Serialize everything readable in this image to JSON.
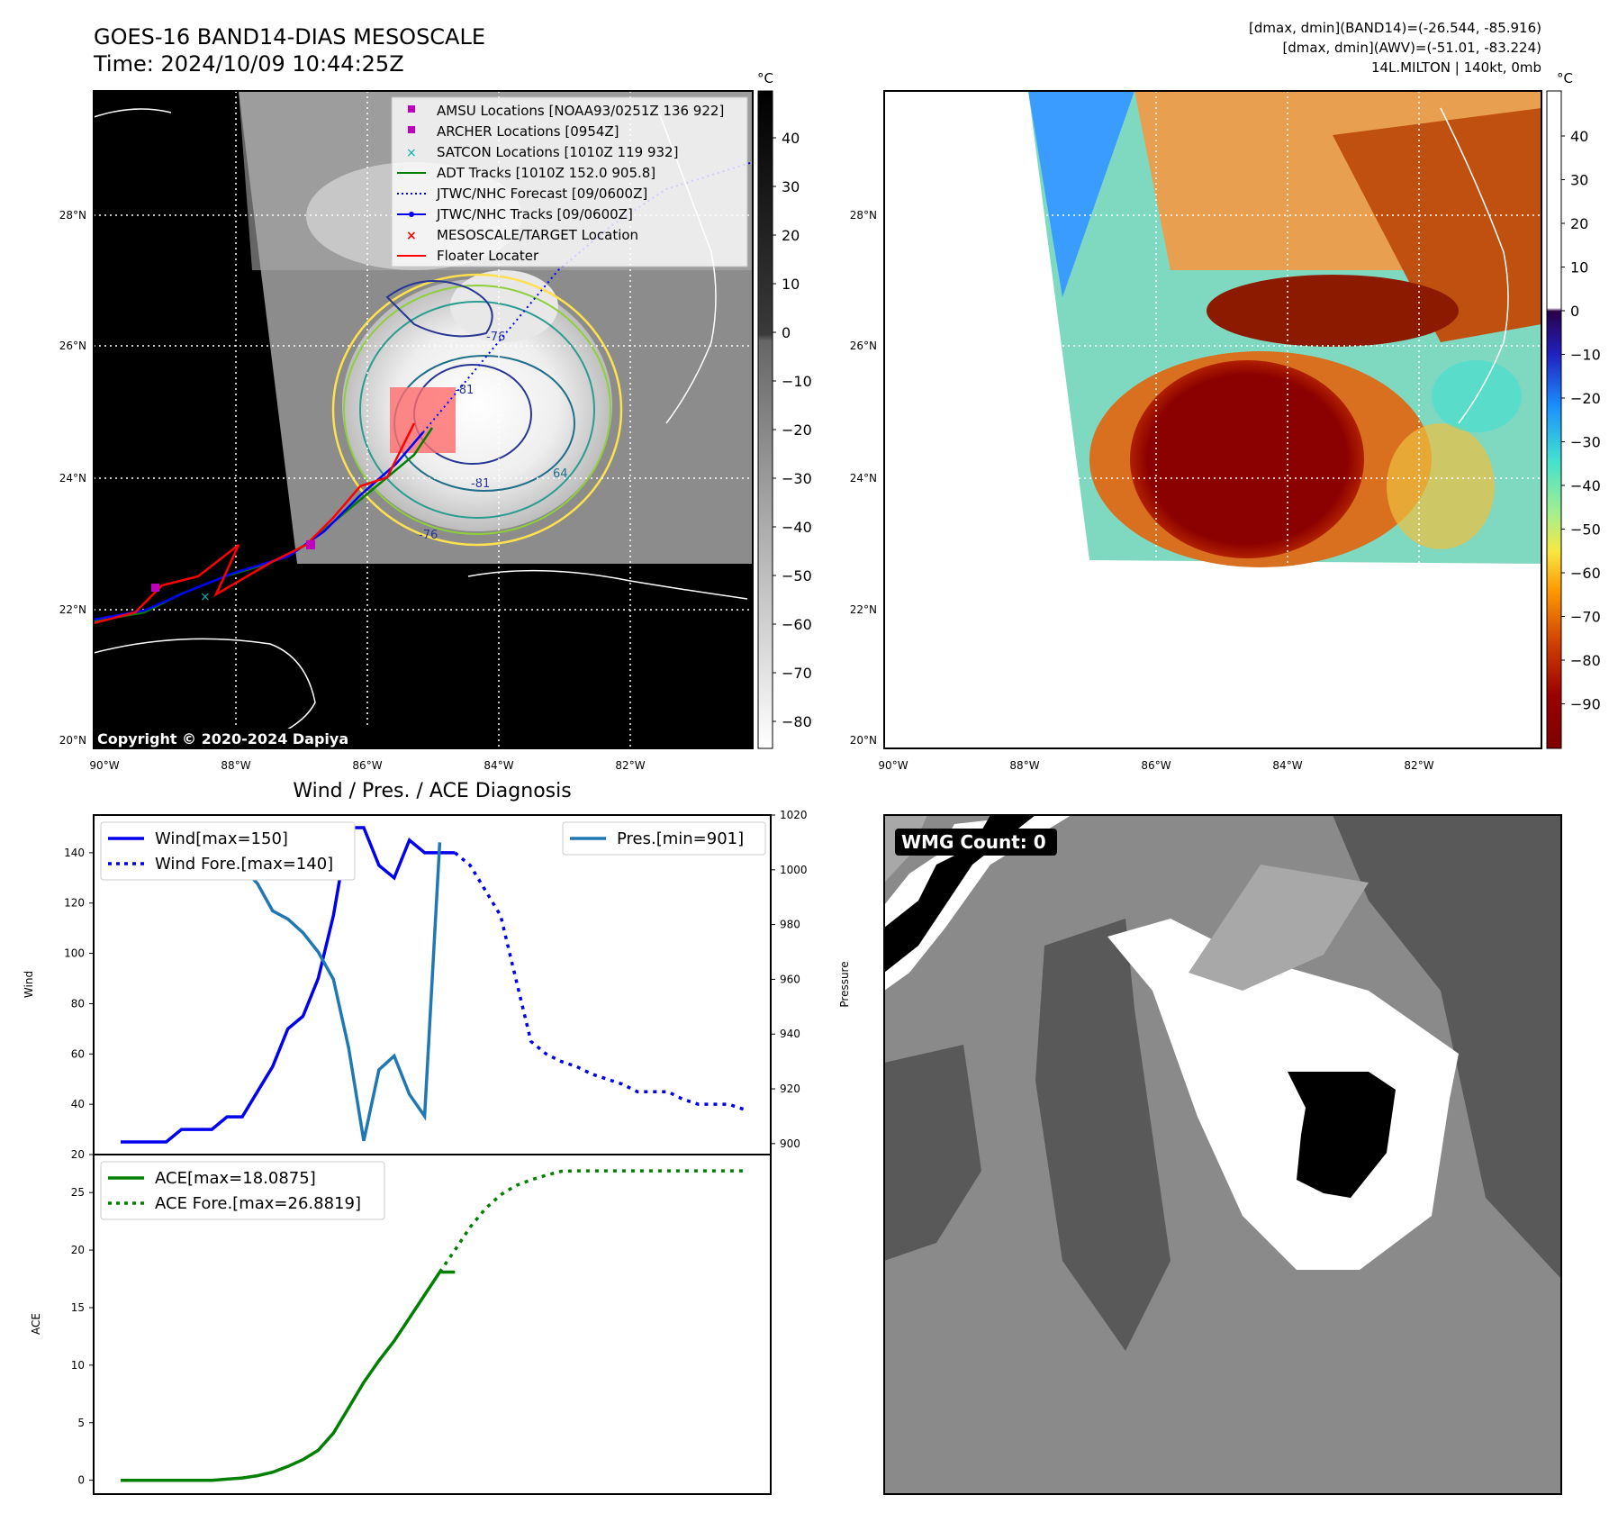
{
  "header": {
    "title_line1": "GOES-16 BAND14-DIAS MESOSCALE",
    "title_line2": "Time: 2024/10/09 10:44:25Z",
    "info_line1": "[dmax, dmin](BAND14)=(-26.544, -85.916)",
    "info_line2": "[dmax, dmin](AWV)=(-51.01, -83.224)",
    "info_line3": "14L.MILTON | 140kt, 0mb"
  },
  "map_axes": {
    "lat_labels": [
      "28°N",
      "26°N",
      "24°N",
      "22°N",
      "20°N"
    ],
    "lon_labels": [
      "90°W",
      "88°W",
      "86°W",
      "84°W",
      "82°W"
    ],
    "copyright": "Copyright © 2020-2024 Dapiya"
  },
  "ir_colorbar": {
    "unit": "°C",
    "ticks": [
      "40",
      "30",
      "20",
      "10",
      "0",
      "−10",
      "−20",
      "−30",
      "−40",
      "−50",
      "−60",
      "−70",
      "−80"
    ],
    "contour_labels": [
      "-81",
      "-81",
      "-76",
      "64",
      "-76"
    ]
  },
  "awv_colorbar": {
    "unit": "°C",
    "ticks": [
      "40",
      "30",
      "20",
      "10",
      "0",
      "−10",
      "−20",
      "−30",
      "−40",
      "−50",
      "−60",
      "−70",
      "−80",
      "−90"
    ]
  },
  "map_legend": [
    {
      "label": "AMSU Locations [NOAA93/0251Z 136 922]",
      "color": "#c000c0"
    },
    {
      "label": "ARCHER Locations [0954Z]",
      "color": "#c000c0"
    },
    {
      "label": "SATCON Locations [1010Z 119 932]",
      "color": "#00b0b0"
    },
    {
      "label": "ADT Tracks [1010Z 152.0 905.8]",
      "color": "#008000"
    },
    {
      "label": "JTWC/NHC Forecast [09/0600Z]",
      "color": "#0000ff"
    },
    {
      "label": "JTWC/NHC Tracks [09/0600Z]",
      "color": "#0000ff"
    },
    {
      "label": "MESOSCALE/TARGET Location",
      "color": "#ff0000"
    },
    {
      "label": "Floater Locater",
      "color": "#ff0000"
    }
  ],
  "wmg": {
    "label": "WMG Count: 0"
  },
  "chart_data": [
    {
      "type": "line",
      "title": "Wind / Pres. / ACE Diagnosis",
      "ylabel": "Wind",
      "y2label": "Pressure",
      "ylim": [
        20,
        155
      ],
      "y2lim": [
        896,
        1020
      ],
      "yticks": [
        20,
        40,
        60,
        80,
        100,
        120,
        140
      ],
      "y2ticks": [
        900,
        920,
        940,
        960,
        980,
        1000,
        1020
      ],
      "xlim": [
        0,
        41
      ],
      "series": [
        {
          "name": "Wind[max=150]",
          "axis": "left",
          "style": "solid",
          "color": "#0000ee",
          "x": [
            0,
            1,
            2,
            3,
            4,
            5,
            6,
            7,
            8,
            9,
            10,
            11,
            12,
            13,
            14,
            15,
            16,
            17,
            18,
            19,
            20,
            21,
            22
          ],
          "y": [
            25,
            25,
            25,
            25,
            30,
            30,
            30,
            35,
            35,
            45,
            55,
            70,
            75,
            90,
            115,
            150,
            150,
            135,
            130,
            145,
            140,
            140,
            140
          ]
        },
        {
          "name": "Wind Fore.[max=140]",
          "axis": "left",
          "style": "dotted",
          "color": "#0000ee",
          "x": [
            22,
            23,
            24,
            25,
            26,
            27,
            28,
            29,
            30,
            31,
            32,
            33,
            34,
            35,
            36,
            37,
            38,
            39,
            40,
            41
          ],
          "y": [
            140,
            135,
            125,
            115,
            90,
            65,
            60,
            57,
            55,
            52,
            50,
            48,
            45,
            45,
            45,
            42,
            40,
            40,
            40,
            38
          ]
        },
        {
          "name": "Pres.[min=901]",
          "axis": "right",
          "style": "solid",
          "color": "#1f77b4",
          "x": [
            0,
            1,
            2,
            3,
            4,
            5,
            6,
            7,
            8,
            9,
            10,
            11,
            12,
            13,
            14,
            15,
            16,
            17,
            18,
            19,
            20,
            21
          ],
          "y": [
            1010,
            1010,
            1010,
            1010,
            1005,
            1005,
            1003,
            1001,
            1001,
            995,
            985,
            982,
            977,
            970,
            960,
            935,
            901,
            927,
            932,
            918,
            910,
            1010
          ]
        }
      ],
      "legend": [
        {
          "label": "Wind[max=150]",
          "style": "solid",
          "color": "#0000ee"
        },
        {
          "label": "Wind Fore.[max=140]",
          "style": "dotted",
          "color": "#0000ee"
        },
        {
          "label": "Pres.[min=901]",
          "style": "solid",
          "color": "#1f77b4"
        }
      ]
    },
    {
      "type": "line",
      "ylabel": "ACE",
      "ylim": [
        -1.2,
        28.3
      ],
      "yticks": [
        0,
        5,
        10,
        15,
        20,
        25
      ],
      "xlim": [
        0,
        41
      ],
      "series": [
        {
          "name": "ACE[max=18.0875]",
          "style": "solid",
          "color": "#008000",
          "x": [
            0,
            1,
            2,
            3,
            4,
            5,
            6,
            7,
            8,
            9,
            10,
            11,
            12,
            13,
            14,
            15,
            16,
            17,
            18,
            19,
            20,
            21,
            22
          ],
          "y": [
            0,
            0,
            0,
            0,
            0,
            0,
            0,
            0.1,
            0.2,
            0.4,
            0.7,
            1.2,
            1.8,
            2.6,
            4.1,
            6.3,
            8.5,
            10.4,
            12.1,
            14.1,
            16.1,
            18.0875,
            18.0875
          ]
        },
        {
          "name": "ACE Fore.[max=26.8819]",
          "style": "dotted",
          "color": "#008000",
          "x": [
            21,
            22,
            23,
            24,
            25,
            26,
            27,
            28,
            29,
            30,
            31,
            32,
            33,
            34,
            35,
            36,
            37,
            38,
            39,
            40,
            41
          ],
          "y": [
            18.0875,
            20.0,
            22.0,
            23.6,
            24.8,
            25.6,
            26.1,
            26.5,
            26.85,
            26.88,
            26.88,
            26.88,
            26.88,
            26.88,
            26.88,
            26.88,
            26.88,
            26.88,
            26.88,
            26.88,
            26.88
          ]
        }
      ],
      "legend": [
        {
          "label": "ACE[max=18.0875]",
          "style": "solid",
          "color": "#008000"
        },
        {
          "label": "ACE Fore.[max=26.8819]",
          "style": "dotted",
          "color": "#008000"
        }
      ]
    }
  ]
}
